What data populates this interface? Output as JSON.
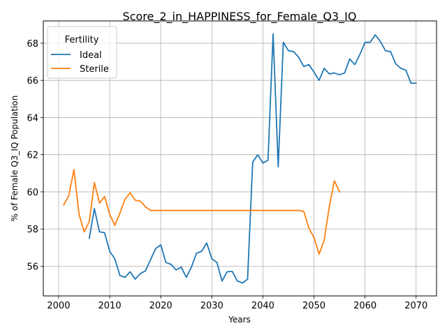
{
  "chart_data": {
    "type": "line",
    "title": "Score_2_in_HAPPINESS_for_Female_Q3_IQ",
    "xlabel": "Years",
    "ylabel": "% of Female Q3_IQ Population",
    "xlim": [
      1997,
      2074
    ],
    "ylim": [
      54.4,
      69.2
    ],
    "xticks": [
      2000,
      2010,
      2020,
      2030,
      2040,
      2050,
      2060,
      2070
    ],
    "yticks": [
      56,
      58,
      60,
      62,
      64,
      66,
      68
    ],
    "grid": true,
    "legend": {
      "title": "Fertility",
      "position": "top-left"
    },
    "series": [
      {
        "name": "Ideal",
        "color": "#1f77b4",
        "x": [
          2006,
          2007,
          2008,
          2009,
          2010,
          2011,
          2012,
          2013,
          2014,
          2015,
          2016,
          2017,
          2018,
          2019,
          2020,
          2021,
          2022,
          2023,
          2024,
          2025,
          2026,
          2027,
          2028,
          2029,
          2030,
          2031,
          2032,
          2033,
          2034,
          2035,
          2036,
          2037,
          2038,
          2039,
          2040,
          2041,
          2042,
          2043,
          2044,
          2045,
          2046,
          2047,
          2048,
          2049,
          2050,
          2051,
          2052,
          2053,
          2054,
          2055,
          2056,
          2057,
          2058,
          2059,
          2060,
          2061,
          2062,
          2063,
          2064,
          2065,
          2066,
          2067,
          2068,
          2069,
          2070
        ],
        "y": [
          57.5,
          59.1,
          57.85,
          57.8,
          56.8,
          56.4,
          55.5,
          55.4,
          55.7,
          55.3,
          55.6,
          55.75,
          56.35,
          56.95,
          57.15,
          56.2,
          56.1,
          55.8,
          55.95,
          55.4,
          55.95,
          56.7,
          56.8,
          57.25,
          56.4,
          56.2,
          55.2,
          55.7,
          55.72,
          55.2,
          55.1,
          55.3,
          61.6,
          62.0,
          61.55,
          61.7,
          68.5,
          61.35,
          68.05,
          67.6,
          67.55,
          67.25,
          66.75,
          66.85,
          66.45,
          66.0,
          66.65,
          66.35,
          66.4,
          66.3,
          66.4,
          67.15,
          66.85,
          67.4,
          68.05,
          68.05,
          68.45,
          68.1,
          67.6,
          67.55,
          66.9,
          66.65,
          66.55,
          65.85,
          65.85
        ]
      },
      {
        "name": "Sterile",
        "color": "#ff7f0e",
        "x": [
          2001,
          2002,
          2003,
          2004,
          2005,
          2006,
          2007,
          2008,
          2009,
          2010,
          2011,
          2012,
          2013,
          2014,
          2015,
          2016,
          2017,
          2018,
          2019,
          2020,
          2021,
          2022,
          2023,
          2024,
          2025,
          2026,
          2027,
          2028,
          2029,
          2030,
          2031,
          2032,
          2033,
          2034,
          2035,
          2036,
          2037,
          2038,
          2039,
          2040,
          2041,
          2042,
          2043,
          2044,
          2045,
          2046,
          2047,
          2048,
          2049,
          2050,
          2051,
          2052,
          2053,
          2054,
          2055
        ],
        "y": [
          59.3,
          59.8,
          61.2,
          58.8,
          57.85,
          58.4,
          60.5,
          59.4,
          59.75,
          58.8,
          58.2,
          58.85,
          59.6,
          59.95,
          59.55,
          59.5,
          59.2,
          59.0,
          59.0,
          59.0,
          59.0,
          59.0,
          59.0,
          59.0,
          59.0,
          59.0,
          59.0,
          59.0,
          59.0,
          59.0,
          59.0,
          59.0,
          59.0,
          59.0,
          59.0,
          59.0,
          59.0,
          59.0,
          59.0,
          59.0,
          59.0,
          59.0,
          59.0,
          59.0,
          59.0,
          59.0,
          59.0,
          58.95,
          58.05,
          57.55,
          56.65,
          57.4,
          59.2,
          60.6,
          60.0
        ]
      }
    ]
  }
}
